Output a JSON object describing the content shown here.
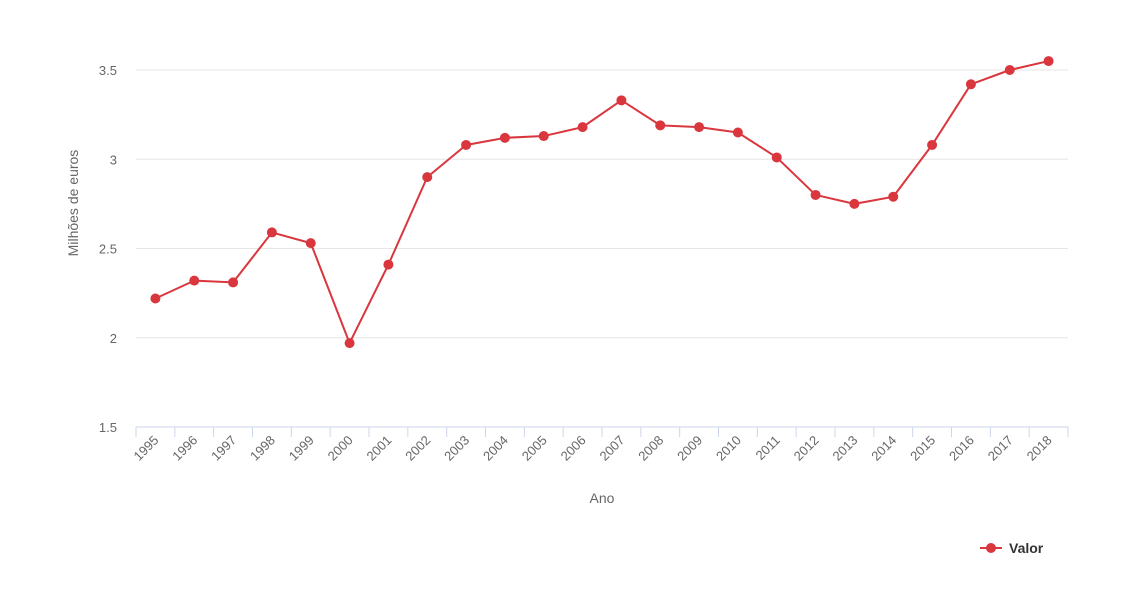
{
  "chart_data": {
    "type": "line",
    "title": "",
    "xlabel": "Ano",
    "ylabel": "Milhões de euros",
    "ylim": [
      1.5,
      3.5
    ],
    "yticks": [
      "1.5",
      "2",
      "2.5",
      "3",
      "3.5"
    ],
    "grid": true,
    "legend_position": "bottom-right",
    "categories": [
      "1995",
      "1996",
      "1997",
      "1998",
      "1999",
      "2000",
      "2001",
      "2002",
      "2003",
      "2004",
      "2005",
      "2006",
      "2007",
      "2008",
      "2009",
      "2010",
      "2011",
      "2012",
      "2013",
      "2014",
      "2015",
      "2016",
      "2017",
      "2018"
    ],
    "series": [
      {
        "name": "Valor",
        "color": "#d9363e",
        "values": [
          2.22,
          2.32,
          2.31,
          2.59,
          2.53,
          1.97,
          2.41,
          2.9,
          3.08,
          3.12,
          3.13,
          3.18,
          3.33,
          3.19,
          3.18,
          3.15,
          3.01,
          2.8,
          2.75,
          2.79,
          3.08,
          3.42,
          3.5,
          3.55
        ]
      }
    ]
  }
}
